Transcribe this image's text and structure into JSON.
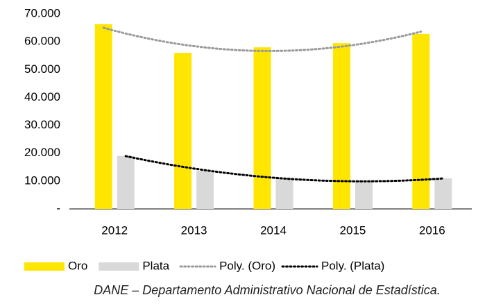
{
  "chart_data": {
    "type": "bar",
    "categories": [
      "2012",
      "2013",
      "2014",
      "2015",
      "2016"
    ],
    "series": [
      {
        "name": "Oro",
        "color": "#ffe600",
        "values": [
          66300,
          56000,
          58000,
          59500,
          62800
        ]
      },
      {
        "name": "Plata",
        "color": "#d9d9d9",
        "values": [
          19000,
          13700,
          11200,
          9700,
          11000
        ]
      }
    ],
    "trendlines": [
      {
        "name": "Poly. (Oro)",
        "series": 0,
        "order": 2,
        "color": "#999999"
      },
      {
        "name": "Poly. (Plata)",
        "series": 1,
        "order": 2,
        "color": "#000000"
      }
    ],
    "ylim": [
      0,
      70000
    ],
    "yticks": [
      {
        "value": 0,
        "label": "-"
      },
      {
        "value": 10000,
        "label": "10.000"
      },
      {
        "value": 20000,
        "label": "20.000"
      },
      {
        "value": 30000,
        "label": "30.000"
      },
      {
        "value": 40000,
        "label": "40.000"
      },
      {
        "value": 50000,
        "label": "50.000"
      },
      {
        "value": 60000,
        "label": "60.000"
      },
      {
        "value": 70000,
        "label": "70.000"
      }
    ],
    "grid": false,
    "legend": "bottom",
    "source": "DANE – Departamento Administrativo Nacional de Estadística."
  }
}
